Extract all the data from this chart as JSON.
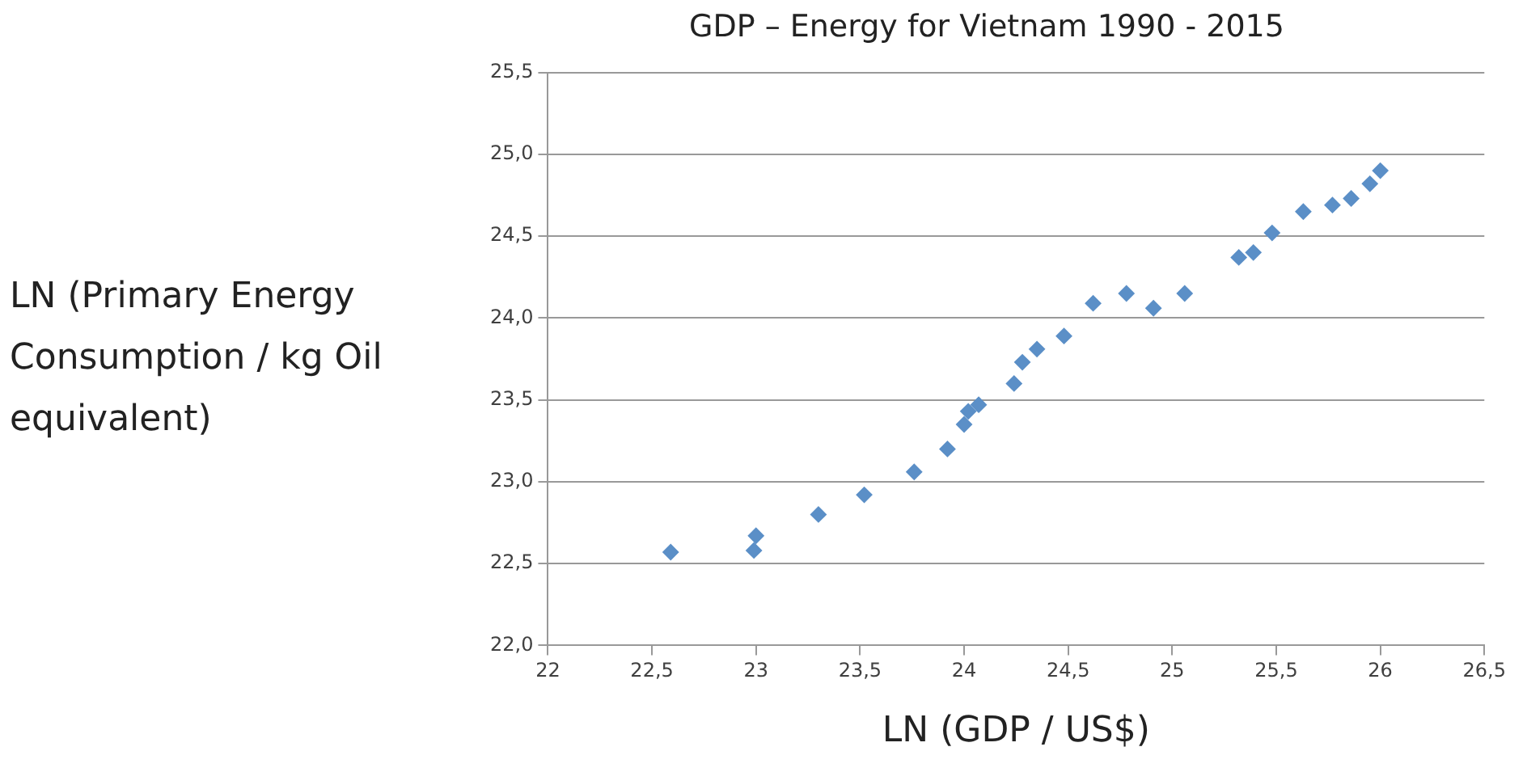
{
  "chart_data": {
    "type": "scatter",
    "title": "GDP – Energy for Vietnam 1990 - 2015",
    "xlabel": "LN (GDP / US$)",
    "ylabel": "LN (Primary Energy Consumption / kg Oil equivalent)",
    "x": [
      22.59,
      22.99,
      23.0,
      23.3,
      23.52,
      23.76,
      23.92,
      24.0,
      24.02,
      24.07,
      24.24,
      24.28,
      24.35,
      24.48,
      24.62,
      24.78,
      24.91,
      25.06,
      25.32,
      25.39,
      25.48,
      25.63,
      25.77,
      25.86,
      25.95,
      26.0
    ],
    "series": [
      {
        "color": "#5b8fc7",
        "values": [
          22.57,
          22.58,
          22.67,
          22.8,
          22.92,
          23.06,
          23.2,
          23.35,
          23.43,
          23.47,
          23.6,
          23.73,
          23.81,
          23.89,
          24.09,
          24.15,
          24.06,
          24.15,
          24.37,
          24.4,
          24.52,
          24.65,
          24.69,
          24.73,
          24.82,
          24.9
        ]
      }
    ],
    "xlim": [
      22,
      26.5
    ],
    "xticks": [
      22,
      {
        "value": 22.5,
        "label": "22,5"
      },
      23,
      {
        "value": 23.5,
        "label": "23,5"
      },
      24,
      {
        "value": 24.5,
        "label": "24,5"
      },
      25,
      {
        "value": 25.5,
        "label": "25,5"
      },
      26,
      {
        "value": 26.5,
        "label": "26,5"
      }
    ],
    "ylim": [
      22,
      25.5
    ],
    "yticks": [
      {
        "value": 22,
        "label": "22,0"
      },
      {
        "value": 22.5,
        "label": "22,5"
      },
      {
        "value": 23,
        "label": "23,0"
      },
      {
        "value": 23.5,
        "label": "23,5"
      },
      {
        "value": 24,
        "label": "24,0"
      },
      {
        "value": 24.5,
        "label": "24,5"
      },
      {
        "value": 25,
        "label": "25,0"
      },
      {
        "value": 25.5,
        "label": "25,5"
      }
    ],
    "grid": "y",
    "legend": false,
    "marker": "diamond"
  }
}
